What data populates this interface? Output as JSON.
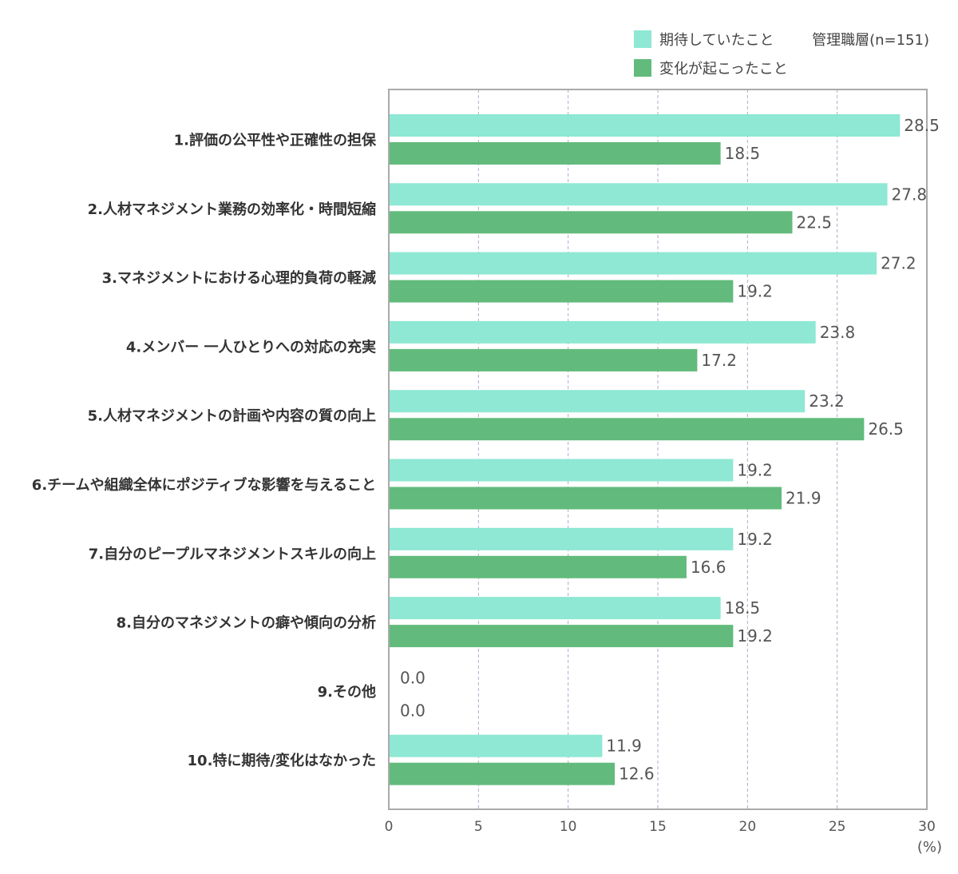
{
  "chart_data": {
    "type": "bar",
    "orientation": "horizontal",
    "sample_label": "管理職層(n=151)",
    "unit_label": "(%)",
    "xlim": [
      0,
      30
    ],
    "x_ticks": [
      "0",
      "5",
      "10",
      "15",
      "20",
      "25",
      "30"
    ],
    "grid": true,
    "legend_position": "top-right",
    "categories": [
      "1.評価の公平性や正確性の担保",
      "2.人材マネジメント業務の効率化・時間短縮",
      "3.マネジメントにおける心理的負荷の軽減",
      "4.メンバー 一人ひとりへの対応の充実",
      "5.人材マネジメントの計画や内容の質の向上",
      "6.チームや組織全体にポジティブな影響を与えること",
      "7.自分のピープルマネジメントスキルの向上",
      "8.自分のマネジメントの癖や傾向の分析",
      "9.その他",
      "10.特に期待/変化はなかった"
    ],
    "series": [
      {
        "name": "期待していたこと",
        "color": "#8ee8d3",
        "values": [
          28.5,
          27.8,
          27.2,
          23.8,
          23.2,
          19.2,
          19.2,
          18.5,
          0.0,
          11.9
        ],
        "labels": [
          "28.5",
          "27.8",
          "27.2",
          "23.8",
          "23.2",
          "19.2",
          "19.2",
          "18.5",
          "0.0",
          "11.9"
        ]
      },
      {
        "name": "変化が起こったこと",
        "color": "#62bb7c",
        "values": [
          18.5,
          22.5,
          19.2,
          17.2,
          26.5,
          21.9,
          16.6,
          19.2,
          0.0,
          12.6
        ],
        "labels": [
          "18.5",
          "22.5",
          "19.2",
          "17.2",
          "26.5",
          "21.9",
          "16.6",
          "19.2",
          "0.0",
          "12.6"
        ]
      }
    ]
  }
}
